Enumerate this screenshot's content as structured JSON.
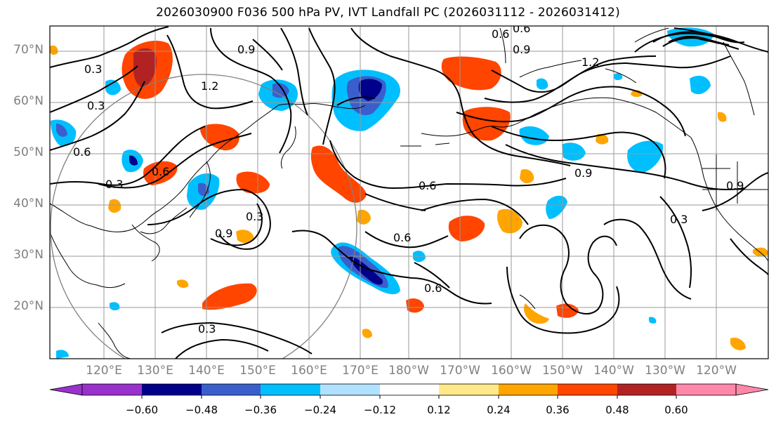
{
  "title": "2026030900 F036 500 hPa PV, IVT Landfall PC (2026031112 - 2026031412)",
  "map": {
    "lat_labels": [
      "70°N",
      "60°N",
      "50°N",
      "40°N",
      "30°N",
      "20°N"
    ],
    "lon_labels": [
      "120°E",
      "130°E",
      "140°E",
      "150°E",
      "160°E",
      "170°E",
      "180°W",
      "170°W",
      "160°W",
      "150°W",
      "140°W",
      "130°W",
      "120°W"
    ],
    "contour_labels": [
      "0.3",
      "0.3",
      "0.6",
      "0.3",
      "0.6",
      "0.9",
      "1.2",
      "0.9",
      "0.6",
      "0.9",
      "0.6",
      "1.2",
      "0.9",
      "0.6",
      "0.3",
      "0.6",
      "0.3",
      "0.9",
      "0.6",
      "0.3"
    ],
    "colors": {
      "contour": "#000000",
      "grid": "#999999",
      "coast": "#000000",
      "circle": "#808080",
      "label": "#808080"
    }
  },
  "colorbar": {
    "ticks": [
      "−0.60",
      "−0.48",
      "−0.36",
      "−0.24",
      "−0.12",
      "0.12",
      "0.24",
      "0.36",
      "0.48",
      "0.60"
    ],
    "colors": [
      "#9932cc",
      "#00008b",
      "#3a5fcd",
      "#00bfff",
      "#b0e2ff",
      "#ffffff",
      "#ffe98a",
      "#ffa500",
      "#ff4500",
      "#b22222",
      "#ff88aa"
    ]
  }
}
